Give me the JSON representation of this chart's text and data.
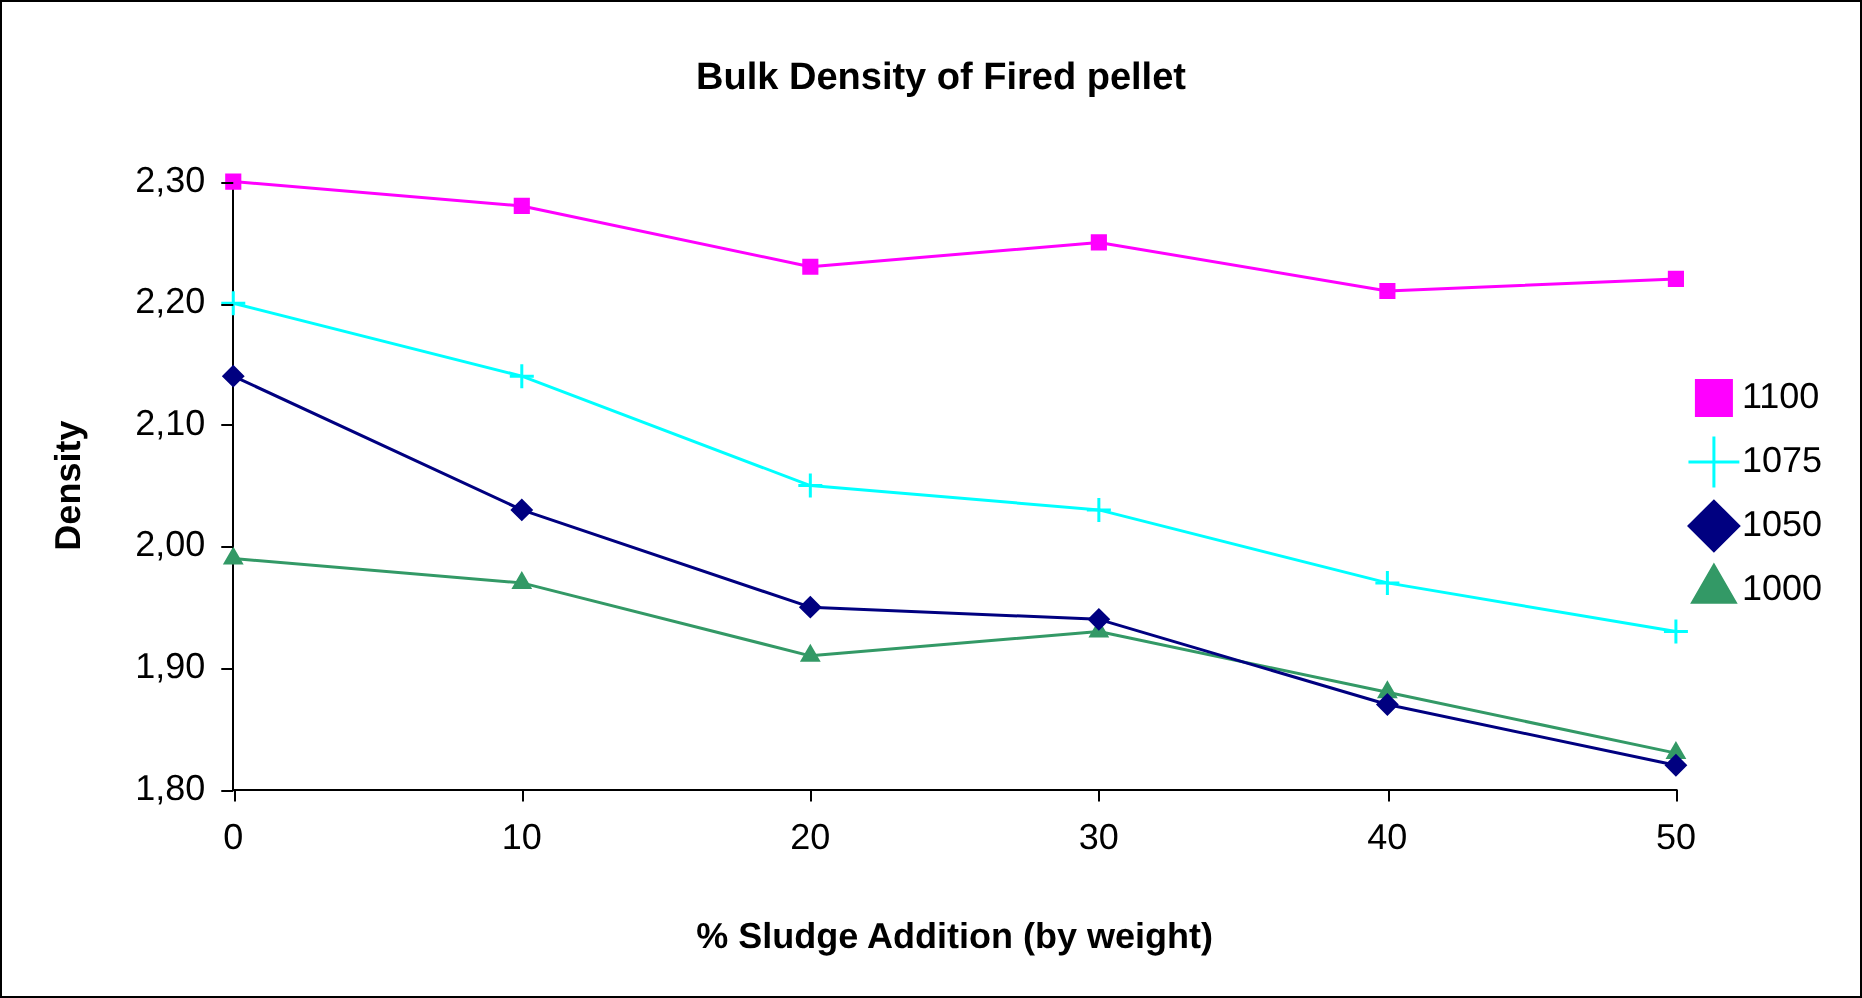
{
  "chart_data": {
    "type": "line",
    "title": "Bulk Density of Fired pellet",
    "xlabel": "% Sludge Addition (by weight)",
    "ylabel": "Density",
    "x": [
      0,
      10,
      20,
      30,
      40,
      50
    ],
    "series": [
      {
        "name": "1100",
        "color": "#ff00ff",
        "marker": "square",
        "values": [
          2.3,
          2.28,
          2.23,
          2.25,
          2.21,
          2.22
        ]
      },
      {
        "name": "1075",
        "color": "#00ffff",
        "marker": "cross",
        "values": [
          2.2,
          2.14,
          2.05,
          2.03,
          1.97,
          1.93
        ]
      },
      {
        "name": "1050",
        "color": "#000080",
        "marker": "diamond",
        "values": [
          2.14,
          2.03,
          1.95,
          1.94,
          1.87,
          1.82
        ]
      },
      {
        "name": "1000",
        "color": "#339966",
        "marker": "triangle",
        "values": [
          1.99,
          1.97,
          1.91,
          1.93,
          1.88,
          1.83
        ]
      }
    ],
    "xlim": [
      0,
      50
    ],
    "xticks": [
      0,
      10,
      20,
      30,
      40,
      50
    ],
    "ylim": [
      1.8,
      2.3
    ],
    "yticks": [
      {
        "value": 1.8,
        "label": "1,80"
      },
      {
        "value": 1.9,
        "label": "1,90"
      },
      {
        "value": 2.0,
        "label": "2,00"
      },
      {
        "value": 2.1,
        "label": "2,10"
      },
      {
        "value": 2.2,
        "label": "2,20"
      },
      {
        "value": 2.3,
        "label": "2,30"
      }
    ],
    "grid": false,
    "legend": "right",
    "line_style": "solid"
  }
}
